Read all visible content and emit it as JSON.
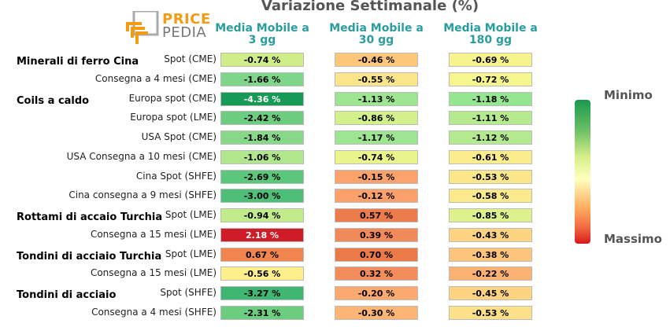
{
  "header": {
    "title": "Variazione Settimanale (%)",
    "logo_top": "PRICE",
    "logo_bottom": "PEDIA"
  },
  "legend": {
    "min_label": "Minimo",
    "max_label": "Massimo",
    "colors": [
      "#1a9850",
      "#66bd63",
      "#d9ef8b",
      "#ffffbf",
      "#fdae61",
      "#f46d43",
      "#d7191c"
    ]
  },
  "chart_data": {
    "type": "table",
    "title": "Variazione Settimanale (%)",
    "columns": [
      "Media Mobile a 3 gg",
      "Media Mobile a 30 gg",
      "Media Mobile a 180 gg"
    ],
    "groups": [
      "Minerali di ferro Cina",
      "Coils a caldo",
      "Rottami di accaio Turchia",
      "Tondini di acciaio Turchia",
      "Tondini di acciaio"
    ],
    "rows": [
      {
        "group": "Minerali di ferro Cina",
        "label": "Spot (CME)",
        "values": [
          "-0.74 %",
          "-0.46 %",
          "-0.69 %"
        ],
        "colors": [
          "#cfee8a",
          "#fdc77a",
          "#f7f48e"
        ]
      },
      {
        "group": "",
        "label": "Consegna a 4 mesi (CME)",
        "values": [
          "-1.66 %",
          "-0.55 %",
          "-0.72 %"
        ],
        "colors": [
          "#7fd68a",
          "#fbe58a",
          "#f5f68e"
        ]
      },
      {
        "group": "Coils a caldo",
        "label": "Europa spot (CME)",
        "values": [
          "-4.36 %",
          "-1.13 %",
          "-1.18 %"
        ],
        "colors": [
          "#179a55",
          "#9ee591",
          "#94e691"
        ]
      },
      {
        "group": "",
        "label": "Europa spot (LME)",
        "values": [
          "-2.42 %",
          "-0.86 %",
          "-1.11 %"
        ],
        "colors": [
          "#6ccd80",
          "#d2f08c",
          "#b6ea8f"
        ]
      },
      {
        "group": "",
        "label": "USA Spot (CME)",
        "values": [
          "-1.84 %",
          "-1.17 %",
          "-1.12 %"
        ],
        "colors": [
          "#88d88a",
          "#9de591",
          "#b4ea8f"
        ]
      },
      {
        "group": "",
        "label": "USA Consegna a 10 mesi (CME)",
        "values": [
          "-1.06 %",
          "-0.74 %",
          "-0.61 %"
        ],
        "colors": [
          "#b2e68e",
          "#eaf48c",
          "#fbed8c"
        ]
      },
      {
        "group": "",
        "label": "Cina Spot (SHFE)",
        "values": [
          "-2.69 %",
          "-0.15 %",
          "-0.53 %"
        ],
        "colors": [
          "#5bc67c",
          "#fca26c",
          "#fbe78a"
        ]
      },
      {
        "group": "",
        "label": "Cina consegna a 9 mesi (SHFE)",
        "values": [
          "-3.00 %",
          "-0.12 %",
          "-0.58 %"
        ],
        "colors": [
          "#4ebf79",
          "#fca06c",
          "#fce98b"
        ]
      },
      {
        "group": "Rottami di accaio Turchia",
        "label": "Spot (LME)",
        "values": [
          "-0.94 %",
          "0.57 %",
          "-0.85 %"
        ],
        "colors": [
          "#c2ec8c",
          "#ec7c4c",
          "#ddf18c"
        ]
      },
      {
        "group": "",
        "label": "Consegna a 15 mesi (LME)",
        "values": [
          "2.18 %",
          "0.39 %",
          "-0.43 %"
        ],
        "colors": [
          "#d01c28",
          "#f1895a",
          "#fcd481"
        ]
      },
      {
        "group": "Tondini di acciaio Turchia",
        "label": "Spot (LME)",
        "values": [
          "0.67 %",
          "0.70 %",
          "-0.38 %"
        ],
        "colors": [
          "#f0854e",
          "#ea7a47",
          "#fcc57b"
        ]
      },
      {
        "group": "",
        "label": "Consegna a 15 mesi (LME)",
        "values": [
          "-0.56 %",
          "0.32 %",
          "-0.22 %"
        ],
        "colors": [
          "#fdf08c",
          "#f38e5c",
          "#fcb172"
        ]
      },
      {
        "group": "Tondini di acciaio",
        "label": "Spot (SHFE)",
        "values": [
          "-3.27 %",
          "-0.20 %",
          "-0.45 %"
        ],
        "colors": [
          "#3fb671",
          "#fca96f",
          "#fcd481"
        ]
      },
      {
        "group": "",
        "label": "Consegna a 4 mesi (SHFE)",
        "values": [
          "-2.31 %",
          "-0.30 %",
          "-0.53 %"
        ],
        "colors": [
          "#6ccd80",
          "#fcb574",
          "#fce08a"
        ]
      }
    ]
  }
}
